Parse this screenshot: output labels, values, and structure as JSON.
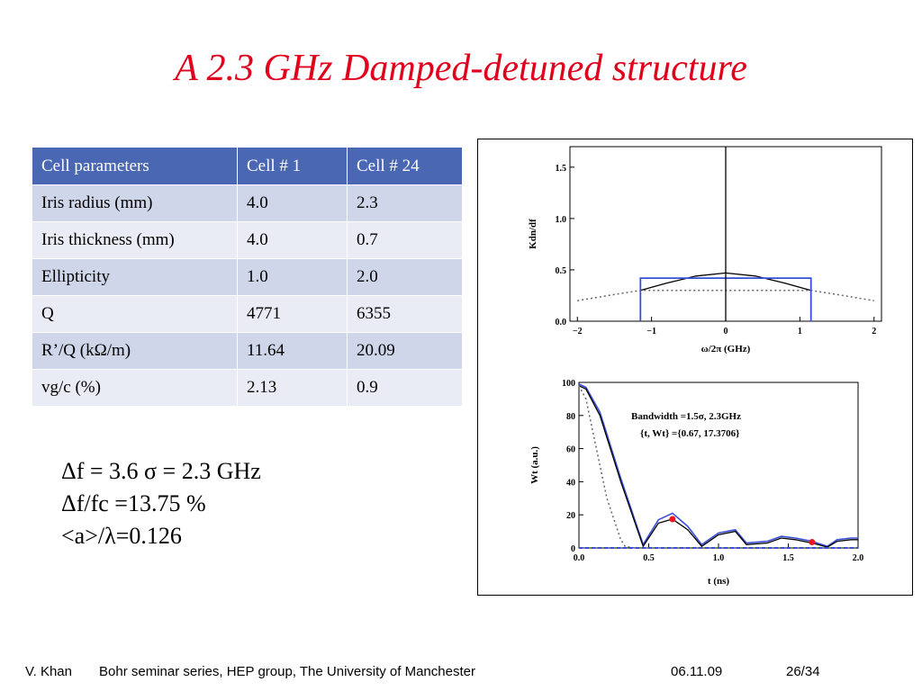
{
  "slide": {
    "title": "A 2.3 GHz Damped-detuned structure"
  },
  "table": {
    "headers": [
      "Cell parameters",
      "Cell # 1",
      "Cell # 24"
    ],
    "rows": [
      [
        "Iris radius (mm)",
        "4.0",
        "2.3"
      ],
      [
        "Iris thickness (mm)",
        "4.0",
        "0.7"
      ],
      [
        "Ellipticity",
        "1.0",
        "2.0"
      ],
      [
        "Q",
        "4771",
        "6355"
      ],
      [
        "R’/Q (kΩ/m)",
        "11.64",
        "20.09"
      ],
      [
        "vg/c (%)",
        "2.13",
        "0.9"
      ]
    ]
  },
  "formulas": [
    "Δf = 3.6 σ = 2.3 GHz",
    "Δf/fc =13.75 %",
    "<a>/λ=0.126"
  ],
  "footer": {
    "author": "V. Khan",
    "series": "Bohr seminar series,  HEP group, The University of Manchester",
    "date": "06.11.09",
    "page": "26/34"
  },
  "colors": {
    "title": "#e0001b",
    "table_header": "#4a67b4",
    "row_odd": "#cfd6e9",
    "row_even": "#e9ecf4",
    "curve_blue": "#3a4fd8",
    "marker_red": "#e8191e"
  },
  "chart_data": [
    {
      "type": "line",
      "ylabel": "Kdn/df",
      "xlabel": "ω/2π (GHz)",
      "xticks": [
        "−2",
        "−1",
        "0",
        "1",
        "2"
      ],
      "yticks": [
        "0.0",
        "0.5",
        "1.0",
        "1.5"
      ],
      "xlim": [
        -2.1,
        2.1
      ],
      "ylim": [
        0,
        1.7
      ],
      "series": [
        {
          "style": "solid-black",
          "x": [
            -1.15,
            -0.8,
            -0.4,
            0,
            0.4,
            0.8,
            1.15
          ],
          "y": [
            0.3,
            0.37,
            0.44,
            0.47,
            0.44,
            0.37,
            0.3
          ]
        },
        {
          "style": "dotted-gray",
          "x": [
            -2.0,
            -1.5,
            -1.15,
            1.15,
            1.5,
            2.0
          ],
          "y": [
            0.2,
            0.26,
            0.3,
            0.3,
            0.26,
            0.2
          ]
        },
        {
          "style": "box-blue",
          "x": [
            -1.15,
            -1.15,
            1.15,
            1.15
          ],
          "y": [
            0,
            0.42,
            0.42,
            0
          ]
        },
        {
          "style": "vertical-line",
          "x": [
            0,
            0
          ],
          "y": [
            0,
            1.7
          ]
        }
      ]
    },
    {
      "type": "line",
      "ylabel": "Wt (a.u.)",
      "xlabel": "t (ns)",
      "xticks": [
        "0.0",
        "0.5",
        "1.0",
        "1.5",
        "2.0"
      ],
      "yticks": [
        "0",
        "20",
        "40",
        "60",
        "80",
        "100"
      ],
      "xlim": [
        0,
        2.0
      ],
      "ylim": [
        0,
        100
      ],
      "annotation": [
        "Bandwidth =1.5σ, 2.3GHz",
        "{t, Wt} ={0.67, 17.3706}"
      ],
      "series": [
        {
          "style": "solid-blue",
          "x": [
            0,
            0.05,
            0.15,
            0.3,
            0.46,
            0.57,
            0.67,
            0.78,
            0.88,
            1.0,
            1.12,
            1.2,
            1.35,
            1.45,
            1.55,
            1.67,
            1.78,
            1.85,
            1.95,
            2.0
          ],
          "y": [
            99,
            97,
            82,
            42,
            2,
            17,
            21,
            13,
            2,
            9,
            11,
            3,
            4,
            7,
            6,
            4,
            1,
            5,
            6,
            6
          ]
        },
        {
          "style": "solid-black",
          "x": [
            0,
            0.05,
            0.15,
            0.3,
            0.46,
            0.57,
            0.67,
            0.78,
            0.88,
            1.0,
            1.12,
            1.2,
            1.35,
            1.45,
            1.55,
            1.67,
            1.78,
            1.85,
            1.95,
            2.0
          ],
          "y": [
            98,
            96,
            80,
            40,
            1,
            15,
            17.4,
            11,
            1,
            8,
            10,
            2,
            3,
            6,
            5,
            3,
            0.5,
            4,
            5,
            5
          ]
        },
        {
          "style": "dotted-gray",
          "x": [
            0,
            0.05,
            0.1,
            0.2,
            0.3,
            0.33,
            0.4,
            0.5,
            0.6,
            0.7
          ],
          "y": [
            98,
            90,
            70,
            30,
            5,
            1,
            0,
            0,
            0,
            0
          ]
        },
        {
          "style": "dashed-blue",
          "x": [
            0,
            2.0
          ],
          "y": [
            0,
            0
          ]
        }
      ],
      "markers": [
        {
          "x": 0.67,
          "y": 17.37
        },
        {
          "x": 1.67,
          "y": 3.5
        }
      ]
    }
  ]
}
